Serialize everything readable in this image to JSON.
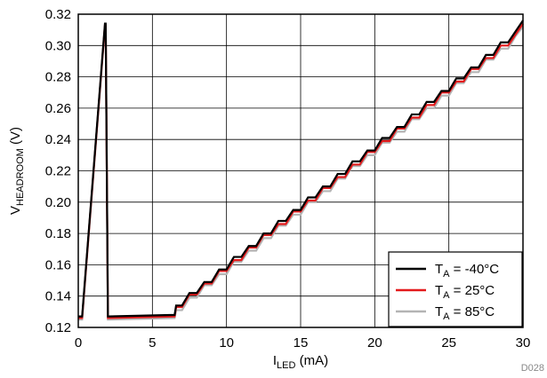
{
  "chart_data": {
    "type": "line",
    "xlabel": {
      "main": "I",
      "sub": "LED",
      "unit": " (mA)"
    },
    "ylabel": {
      "main": "V",
      "sub": "HEADROOM",
      "unit": " (V)"
    },
    "xlim": [
      0,
      30
    ],
    "ylim": [
      0.12,
      0.32
    ],
    "xticks": [
      "0",
      "5",
      "10",
      "15",
      "20",
      "25",
      "30"
    ],
    "yticks": [
      "0.12",
      "0.14",
      "0.16",
      "0.18",
      "0.20",
      "0.22",
      "0.24",
      "0.26",
      "0.28",
      "0.30",
      "0.32"
    ],
    "grid": true,
    "legend_position": "bottom-right",
    "figure_id": "D028",
    "series": [
      {
        "legend": {
          "main": "T",
          "sub": "A",
          "rest": " = -40°C"
        },
        "color": "#000000",
        "x": [
          0,
          0.25,
          0.26,
          1.8,
          1.85,
          2.0,
          2.05,
          6.5,
          6.6,
          7.0,
          7.5,
          8.0,
          8.5,
          9.0,
          9.5,
          10.0,
          10.5,
          11.0,
          11.5,
          12.0,
          12.5,
          13.0,
          13.5,
          14.0,
          14.5,
          15.0,
          15.5,
          16.0,
          16.5,
          17.0,
          17.5,
          18.0,
          18.5,
          19.0,
          19.5,
          20.0,
          20.5,
          21.0,
          21.5,
          22.0,
          22.5,
          23.0,
          23.5,
          24.0,
          24.5,
          25.0,
          25.5,
          26.0,
          26.5,
          27.0,
          27.5,
          28.0,
          28.5,
          29.0,
          29.5,
          30.0
        ],
        "y": [
          0.127,
          0.127,
          0.127,
          0.314,
          0.314,
          0.127,
          0.127,
          0.128,
          0.134,
          0.134,
          0.142,
          0.142,
          0.149,
          0.149,
          0.157,
          0.157,
          0.165,
          0.165,
          0.172,
          0.172,
          0.18,
          0.18,
          0.188,
          0.188,
          0.195,
          0.195,
          0.203,
          0.203,
          0.21,
          0.21,
          0.218,
          0.218,
          0.226,
          0.226,
          0.233,
          0.233,
          0.241,
          0.241,
          0.248,
          0.248,
          0.256,
          0.256,
          0.264,
          0.264,
          0.271,
          0.271,
          0.279,
          0.279,
          0.286,
          0.286,
          0.294,
          0.294,
          0.302,
          0.302,
          0.309,
          0.316
        ]
      },
      {
        "legend": {
          "main": "T",
          "sub": "A",
          "rest": " = 25°C"
        },
        "color": "#e31a1c",
        "x": [
          0,
          0.25,
          0.26,
          1.8,
          1.85,
          2.0,
          2.05,
          6.5,
          6.6,
          7.0,
          7.5,
          8.0,
          8.5,
          9.0,
          9.5,
          10.0,
          10.5,
          11.0,
          11.5,
          12.0,
          12.5,
          13.0,
          13.5,
          14.0,
          14.5,
          15.0,
          15.5,
          16.0,
          16.5,
          17.0,
          17.5,
          18.0,
          18.5,
          19.0,
          19.5,
          20.0,
          20.5,
          21.0,
          21.5,
          22.0,
          22.5,
          23.0,
          23.5,
          24.0,
          24.5,
          25.0,
          25.5,
          26.0,
          26.5,
          27.0,
          27.5,
          28.0,
          28.5,
          29.0,
          29.5,
          30.0
        ],
        "y": [
          0.126,
          0.126,
          0.126,
          0.313,
          0.313,
          0.126,
          0.126,
          0.127,
          0.133,
          0.133,
          0.141,
          0.141,
          0.148,
          0.148,
          0.156,
          0.156,
          0.163,
          0.163,
          0.171,
          0.171,
          0.179,
          0.179,
          0.186,
          0.186,
          0.194,
          0.194,
          0.201,
          0.201,
          0.209,
          0.209,
          0.216,
          0.216,
          0.224,
          0.224,
          0.232,
          0.232,
          0.239,
          0.239,
          0.247,
          0.247,
          0.254,
          0.254,
          0.262,
          0.262,
          0.27,
          0.27,
          0.277,
          0.277,
          0.285,
          0.285,
          0.292,
          0.292,
          0.3,
          0.3,
          0.307,
          0.314
        ]
      },
      {
        "legend": {
          "main": "T",
          "sub": "A",
          "rest": " = 85°C"
        },
        "color": "#b4b4b4",
        "x": [
          0,
          0.25,
          0.26,
          1.8,
          1.85,
          2.0,
          2.05,
          6.5,
          6.6,
          7.0,
          7.5,
          8.0,
          8.5,
          9.0,
          9.5,
          10.0,
          10.5,
          11.0,
          11.5,
          12.0,
          12.5,
          13.0,
          13.5,
          14.0,
          14.5,
          15.0,
          15.5,
          16.0,
          16.5,
          17.0,
          17.5,
          18.0,
          18.5,
          19.0,
          19.5,
          20.0,
          20.5,
          21.0,
          21.5,
          22.0,
          22.5,
          23.0,
          23.5,
          24.0,
          24.5,
          25.0,
          25.5,
          26.0,
          26.5,
          27.0,
          27.5,
          28.0,
          28.5,
          29.0,
          29.5,
          30.0
        ],
        "y": [
          0.125,
          0.125,
          0.125,
          0.312,
          0.312,
          0.125,
          0.125,
          0.126,
          0.131,
          0.131,
          0.139,
          0.139,
          0.147,
          0.147,
          0.154,
          0.154,
          0.162,
          0.162,
          0.169,
          0.169,
          0.177,
          0.177,
          0.185,
          0.185,
          0.192,
          0.192,
          0.2,
          0.2,
          0.207,
          0.207,
          0.215,
          0.215,
          0.223,
          0.223,
          0.23,
          0.23,
          0.238,
          0.238,
          0.245,
          0.245,
          0.253,
          0.253,
          0.26,
          0.26,
          0.268,
          0.268,
          0.276,
          0.276,
          0.283,
          0.283,
          0.291,
          0.291,
          0.298,
          0.298,
          0.306,
          0.312
        ]
      }
    ]
  }
}
